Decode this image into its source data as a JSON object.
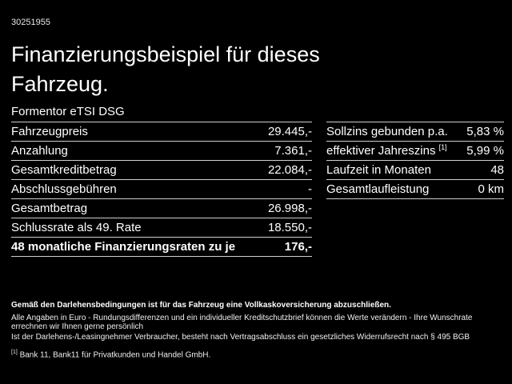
{
  "header": {
    "id": "30251955",
    "title": "Finanzierungsbeispiel für dieses Fahrzeug.",
    "subtitle": "Formentor eTSI DSG"
  },
  "tables": {
    "left": [
      {
        "label": "Fahrzeugpreis",
        "value": "29.445,-"
      },
      {
        "label": "Anzahlung",
        "value": "7.361,-"
      },
      {
        "label": "Gesamtkreditbetrag",
        "value": "22.084,-"
      },
      {
        "label": "Abschlussgebühren",
        "value": "-"
      },
      {
        "label": "Gesamtbetrag",
        "value": "26.998,-"
      },
      {
        "label": "Schlussrate als 49. Rate",
        "value": "18.550,-"
      },
      {
        "label": "48 monatliche Finanzierungsraten zu je",
        "value": "176,-"
      }
    ],
    "right": [
      {
        "label": "Sollzins gebunden p.a.",
        "value": "5,83 %"
      },
      {
        "label": "effektiver Jahreszins",
        "sup": "[1]",
        "value": "5,99 %"
      },
      {
        "label": "Laufzeit in Monaten",
        "value": "48"
      },
      {
        "label": "Gesamtlaufleistung",
        "value": "0 km"
      }
    ]
  },
  "footer": {
    "line1": "Gemäß den Darlehensbedingungen ist für das Fahrzeug eine Vollkaskoversicherung abzuschließen.",
    "line2": "Alle Angaben in Euro - Rundungsdifferenzen und ein individueller Kreditschutzbrief können die Werte verändern - Ihre Wunschrate errechnen wir Ihnen gerne persönlich",
    "line3": "Ist der Darlehens-/Leasingnehmer Verbraucher, besteht nach Vertragsabschluss ein gesetzliches Widerrufsrecht nach § 495 BGB",
    "footnote_marker": "[1]",
    "footnote_text": "Bank 11, Bank11 für Privatkunden und Handel GmbH."
  },
  "colors": {
    "background": "#000000",
    "text": "#ffffff",
    "divider": "#cfcfcf"
  }
}
